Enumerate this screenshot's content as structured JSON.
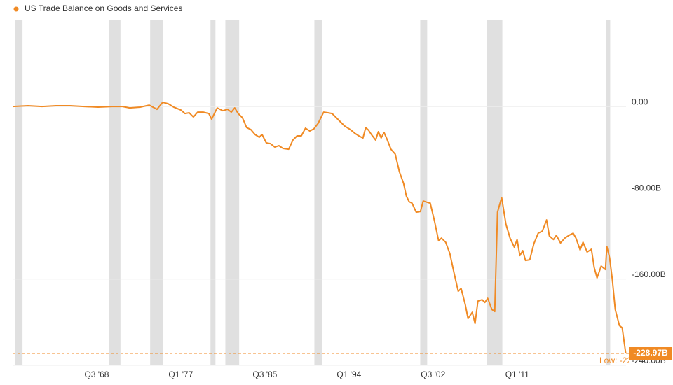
{
  "chart_data": {
    "type": "line",
    "title": "US Trade Balance on Goods and Services",
    "color": "#f08a24",
    "recession_color": "#e0e0e0",
    "grid": true,
    "xlim": [
      1960,
      2022
    ],
    "ylim": [
      -240,
      80
    ],
    "xticks": [
      {
        "value": 1968.5,
        "label": "Q3 '68"
      },
      {
        "value": 1977.0,
        "label": "Q1 '77"
      },
      {
        "value": 1985.5,
        "label": "Q3 '85"
      },
      {
        "value": 1994.0,
        "label": "Q1 '94"
      },
      {
        "value": 2002.5,
        "label": "Q3 '02"
      },
      {
        "value": 2011.0,
        "label": "Q1 '11"
      }
    ],
    "yticks": [
      {
        "value": 0,
        "label": "0.00"
      },
      {
        "value": -80,
        "label": "-80.00B"
      },
      {
        "value": -160,
        "label": "-160.00B"
      },
      {
        "value": -240,
        "label": "-240.00B"
      }
    ],
    "recessions": [
      [
        1960.25,
        1961.0
      ],
      [
        1969.75,
        1970.9
      ],
      [
        1973.9,
        1975.2
      ],
      [
        1980.0,
        1980.5
      ],
      [
        1981.5,
        1982.9
      ],
      [
        1990.5,
        1991.25
      ],
      [
        2001.2,
        2001.9
      ],
      [
        2007.9,
        2009.5
      ],
      [
        2020.0,
        2020.4
      ]
    ],
    "low": {
      "value": -228.97,
      "label": "Low: -228.97B"
    },
    "last_value_label": "-228.97B",
    "series": [
      {
        "name": "US Trade Balance on Goods and Services",
        "color": "#f08a24",
        "x": [
          1960.0,
          1961.56,
          1962.97,
          1964.39,
          1965.81,
          1967.22,
          1968.64,
          1970.06,
          1971.12,
          1971.83,
          1972.89,
          1973.81,
          1974.59,
          1975.16,
          1975.72,
          1976.29,
          1977.0,
          1977.42,
          1977.85,
          1978.27,
          1978.7,
          1979.26,
          1979.83,
          1980.11,
          1980.68,
          1981.25,
          1981.74,
          1982.1,
          1982.45,
          1982.8,
          1983.23,
          1983.65,
          1984.08,
          1984.5,
          1984.93,
          1985.21,
          1985.64,
          1986.06,
          1986.49,
          1986.91,
          1987.34,
          1987.9,
          1988.33,
          1988.75,
          1989.18,
          1989.6,
          1990.03,
          1990.45,
          1990.88,
          1991.16,
          1991.44,
          1991.87,
          1992.29,
          1992.72,
          1993.14,
          1993.57,
          1994.14,
          1994.56,
          1994.99,
          1995.41,
          1995.69,
          1995.98,
          1996.26,
          1996.69,
          1996.97,
          1997.25,
          1997.54,
          1997.82,
          1998.24,
          1998.67,
          1999.09,
          1999.52,
          1999.8,
          2000.08,
          2000.37,
          2000.79,
          2001.22,
          2001.5,
          2001.93,
          2002.21,
          2002.63,
          2003.06,
          2003.34,
          2003.77,
          2004.19,
          2004.62,
          2005.04,
          2005.33,
          2005.75,
          2006.03,
          2006.46,
          2006.74,
          2007.03,
          2007.45,
          2007.73,
          2008.02,
          2008.44,
          2008.73,
          2009.01,
          2009.43,
          2009.86,
          2010.28,
          2010.71,
          2010.99,
          2011.27,
          2011.56,
          2011.84,
          2012.27,
          2012.69,
          2013.12,
          2013.54,
          2013.97,
          2014.25,
          2014.67,
          2014.96,
          2015.38,
          2015.81,
          2016.23,
          2016.66,
          2016.94,
          2017.36,
          2017.65,
          2018.07,
          2018.5,
          2018.78,
          2019.07,
          2019.49,
          2019.92,
          2020.06,
          2020.34,
          2020.62,
          2020.91,
          2021.33,
          2021.61,
          2021.97
        ],
        "values": [
          0.1,
          0.8,
          0.1,
          0.8,
          0.8,
          0.1,
          -0.5,
          0.1,
          0.1,
          -1.2,
          -0.5,
          1.4,
          -2.5,
          4.0,
          2.7,
          -0.5,
          -3.1,
          -6.4,
          -5.7,
          -9.6,
          -5.1,
          -5.1,
          -6.4,
          -11.6,
          -1.2,
          -3.8,
          -2.5,
          -5.1,
          -1.2,
          -6.4,
          -10.3,
          -19.4,
          -21.3,
          -25.8,
          -28.4,
          -25.8,
          -33.6,
          -34.3,
          -37.5,
          -36.2,
          -38.8,
          -39.5,
          -31.0,
          -27.1,
          -27.1,
          -20.0,
          -22.6,
          -20.6,
          -15.5,
          -10.3,
          -5.1,
          -5.7,
          -6.4,
          -10.3,
          -14.2,
          -18.1,
          -21.3,
          -24.5,
          -27.1,
          -29.1,
          -19.4,
          -21.9,
          -25.8,
          -31.0,
          -23.2,
          -29.1,
          -23.9,
          -29.7,
          -39.5,
          -44.0,
          -60.3,
          -71.3,
          -83.0,
          -88.2,
          -89.5,
          -97.9,
          -97.3,
          -87.5,
          -88.8,
          -89.5,
          -105.7,
          -124.5,
          -122.0,
          -125.8,
          -136.2,
          -154.4,
          -171.3,
          -168.7,
          -183.6,
          -196.6,
          -190.8,
          -201.2,
          -180.4,
          -179.1,
          -181.7,
          -177.8,
          -188.2,
          -190.1,
          -97.9,
          -84.3,
          -109.0,
          -122.0,
          -130.4,
          -123.3,
          -138.2,
          -133.6,
          -142.7,
          -142.1,
          -127.1,
          -117.4,
          -115.5,
          -105.1,
          -120.0,
          -123.3,
          -119.4,
          -126.5,
          -122.0,
          -119.4,
          -117.4,
          -122.0,
          -133.0,
          -125.8,
          -134.9,
          -132.3,
          -149.2,
          -158.9,
          -147.9,
          -151.1,
          -129.7,
          -140.1,
          -160.9,
          -188.2,
          -203.1,
          -205.1,
          -228.97
        ]
      }
    ]
  }
}
